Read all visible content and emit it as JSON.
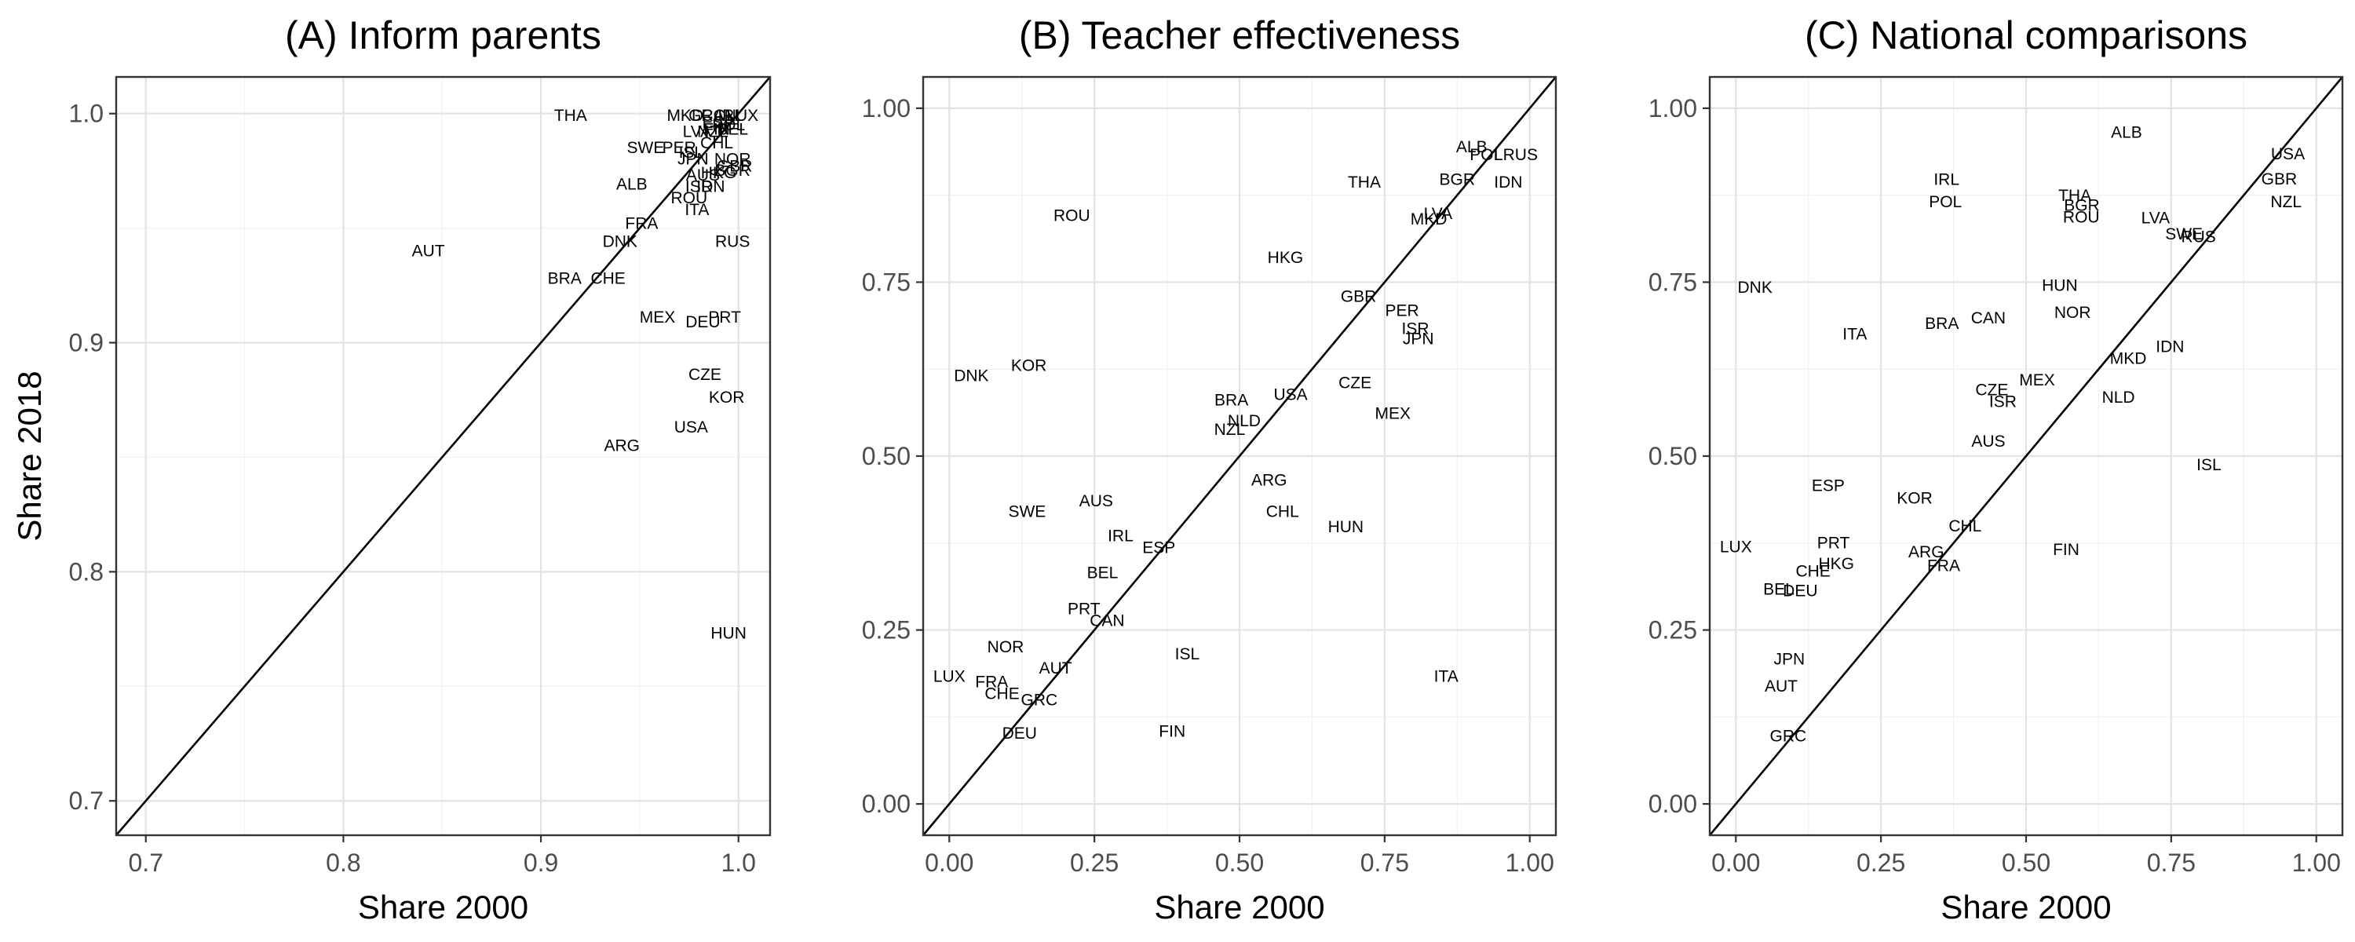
{
  "chart_data": [
    {
      "type": "scatter",
      "title": "(A) Inform parents",
      "xlabel": "Share 2000",
      "ylabel": "Share 2018",
      "xlim": [
        0.685,
        1.016
      ],
      "ylim": [
        0.685,
        1.016
      ],
      "xticks": [
        0.7,
        0.8,
        0.9,
        1.0
      ],
      "xtick_labels": [
        "0.7",
        "0.8",
        "0.9",
        "1.0"
      ],
      "yticks": [
        0.7,
        0.8,
        0.9,
        1.0
      ],
      "ytick_labels": [
        "0.7",
        "0.8",
        "0.9",
        "1.0"
      ],
      "reference_line": "y = x",
      "grid": true,
      "points": [
        {
          "label": "THA",
          "x": 0.915,
          "y": 0.999
        },
        {
          "label": "MKD",
          "x": 0.973,
          "y": 0.999
        },
        {
          "label": "GRC",
          "x": 0.984,
          "y": 0.999
        },
        {
          "label": "CAN",
          "x": 0.99,
          "y": 0.999
        },
        {
          "label": "IRL",
          "x": 0.996,
          "y": 0.999
        },
        {
          "label": "LUX",
          "x": 1.002,
          "y": 0.999
        },
        {
          "label": "ESP",
          "x": 0.99,
          "y": 0.996
        },
        {
          "label": "POL",
          "x": 0.995,
          "y": 0.995
        },
        {
          "label": "FIN",
          "x": 0.989,
          "y": 0.993
        },
        {
          "label": "BEL",
          "x": 0.997,
          "y": 0.993
        },
        {
          "label": "LVA",
          "x": 0.979,
          "y": 0.992
        },
        {
          "label": "NZL",
          "x": 0.987,
          "y": 0.992
        },
        {
          "label": "CHL",
          "x": 0.989,
          "y": 0.987
        },
        {
          "label": "SWE",
          "x": 0.953,
          "y": 0.985
        },
        {
          "label": "PER",
          "x": 0.97,
          "y": 0.985
        },
        {
          "label": "ISL",
          "x": 0.976,
          "y": 0.983
        },
        {
          "label": "JPN",
          "x": 0.977,
          "y": 0.98
        },
        {
          "label": "NOR",
          "x": 0.997,
          "y": 0.98
        },
        {
          "label": "GBR",
          "x": 0.998,
          "y": 0.977
        },
        {
          "label": "BGR",
          "x": 0.997,
          "y": 0.975
        },
        {
          "label": "AUS",
          "x": 0.982,
          "y": 0.973
        },
        {
          "label": "HKG",
          "x": 0.99,
          "y": 0.974
        },
        {
          "label": "ALB",
          "x": 0.946,
          "y": 0.969
        },
        {
          "label": "ISR",
          "x": 0.98,
          "y": 0.968
        },
        {
          "label": "IDN",
          "x": 0.986,
          "y": 0.968
        },
        {
          "label": "ROU",
          "x": 0.975,
          "y": 0.963
        },
        {
          "label": "ITA",
          "x": 0.979,
          "y": 0.958
        },
        {
          "label": "FRA",
          "x": 0.951,
          "y": 0.952
        },
        {
          "label": "DNK",
          "x": 0.94,
          "y": 0.944
        },
        {
          "label": "RUS",
          "x": 0.997,
          "y": 0.944
        },
        {
          "label": "AUT",
          "x": 0.843,
          "y": 0.94
        },
        {
          "label": "BRA",
          "x": 0.912,
          "y": 0.928
        },
        {
          "label": "CHE",
          "x": 0.934,
          "y": 0.928
        },
        {
          "label": "MEX",
          "x": 0.959,
          "y": 0.911
        },
        {
          "label": "DEU",
          "x": 0.982,
          "y": 0.909
        },
        {
          "label": "PRT",
          "x": 0.993,
          "y": 0.911
        },
        {
          "label": "CZE",
          "x": 0.983,
          "y": 0.886
        },
        {
          "label": "KOR",
          "x": 0.994,
          "y": 0.876
        },
        {
          "label": "USA",
          "x": 0.976,
          "y": 0.863
        },
        {
          "label": "ARG",
          "x": 0.941,
          "y": 0.855
        },
        {
          "label": "HUN",
          "x": 0.995,
          "y": 0.773
        }
      ]
    },
    {
      "type": "scatter",
      "title": "(B) Teacher effectiveness",
      "xlabel": "Share 2000",
      "ylabel": "",
      "xlim": [
        -0.045,
        1.045
      ],
      "ylim": [
        -0.045,
        1.045
      ],
      "xticks": [
        0,
        0.25,
        0.5,
        0.75,
        1.0
      ],
      "xtick_labels": [
        "0.00",
        "0.25",
        "0.50",
        "0.75",
        "1.00"
      ],
      "yticks": [
        0,
        0.25,
        0.5,
        0.75,
        1.0
      ],
      "ytick_labels": [
        "0.00",
        "0.25",
        "0.50",
        "0.75",
        "1.00"
      ],
      "reference_line": "y = x",
      "grid": true,
      "points": [
        {
          "label": "ALB",
          "x": 0.9,
          "y": 0.944
        },
        {
          "label": "POL",
          "x": 0.925,
          "y": 0.933
        },
        {
          "label": "LRUS",
          "x": 0.976,
          "y": 0.933
        },
        {
          "label": "THA",
          "x": 0.715,
          "y": 0.893
        },
        {
          "label": "BGR",
          "x": 0.875,
          "y": 0.897
        },
        {
          "label": "IDN",
          "x": 0.963,
          "y": 0.893
        },
        {
          "label": "ROU",
          "x": 0.211,
          "y": 0.845
        },
        {
          "label": "LVA",
          "x": 0.842,
          "y": 0.848
        },
        {
          "label": "MKD",
          "x": 0.826,
          "y": 0.84
        },
        {
          "label": "HKG",
          "x": 0.579,
          "y": 0.785
        },
        {
          "label": "GBR",
          "x": 0.705,
          "y": 0.729
        },
        {
          "label": "PER",
          "x": 0.78,
          "y": 0.709
        },
        {
          "label": "ISR",
          "x": 0.803,
          "y": 0.683
        },
        {
          "label": "JPN",
          "x": 0.808,
          "y": 0.668
        },
        {
          "label": "DNK",
          "x": 0.038,
          "y": 0.615
        },
        {
          "label": "KOR",
          "x": 0.137,
          "y": 0.63
        },
        {
          "label": "CZE",
          "x": 0.699,
          "y": 0.605
        },
        {
          "label": "USA",
          "x": 0.588,
          "y": 0.588
        },
        {
          "label": "BRA",
          "x": 0.486,
          "y": 0.58
        },
        {
          "label": "MEX",
          "x": 0.764,
          "y": 0.561
        },
        {
          "label": "NLD",
          "x": 0.508,
          "y": 0.55
        },
        {
          "label": "NZL",
          "x": 0.483,
          "y": 0.538
        },
        {
          "label": "ARG",
          "x": 0.551,
          "y": 0.465
        },
        {
          "label": "SWE",
          "x": 0.134,
          "y": 0.42
        },
        {
          "label": "AUS",
          "x": 0.253,
          "y": 0.435
        },
        {
          "label": "CHL",
          "x": 0.574,
          "y": 0.42
        },
        {
          "label": "HUN",
          "x": 0.683,
          "y": 0.398
        },
        {
          "label": "IRL",
          "x": 0.295,
          "y": 0.385
        },
        {
          "label": "ESP",
          "x": 0.361,
          "y": 0.368
        },
        {
          "label": "BEL",
          "x": 0.264,
          "y": 0.332
        },
        {
          "label": "PRT",
          "x": 0.232,
          "y": 0.28
        },
        {
          "label": "CAN",
          "x": 0.272,
          "y": 0.263
        },
        {
          "label": "NOR",
          "x": 0.097,
          "y": 0.225
        },
        {
          "label": "ISL",
          "x": 0.41,
          "y": 0.215
        },
        {
          "label": "AUT",
          "x": 0.183,
          "y": 0.195
        },
        {
          "label": "LUX",
          "x": 0.0,
          "y": 0.183
        },
        {
          "label": "FRA",
          "x": 0.073,
          "y": 0.175
        },
        {
          "label": "CHE",
          "x": 0.091,
          "y": 0.158
        },
        {
          "label": "GRC",
          "x": 0.155,
          "y": 0.149
        },
        {
          "label": "DEU",
          "x": 0.121,
          "y": 0.101
        },
        {
          "label": "FIN",
          "x": 0.384,
          "y": 0.104
        },
        {
          "label": "ITA",
          "x": 0.856,
          "y": 0.183
        }
      ]
    },
    {
      "type": "scatter",
      "title": "(C) National comparisons",
      "xlabel": "Share 2000",
      "ylabel": "",
      "xlim": [
        -0.045,
        1.045
      ],
      "ylim": [
        -0.045,
        1.045
      ],
      "xticks": [
        0,
        0.25,
        0.5,
        0.75,
        1.0
      ],
      "xtick_labels": [
        "0.00",
        "0.25",
        "0.50",
        "0.75",
        "1.00"
      ],
      "yticks": [
        0,
        0.25,
        0.5,
        0.75,
        1.0
      ],
      "yticks_labels_hidden": true,
      "ytick_labels": [
        "0.00",
        "0.25",
        "0.50",
        "0.75",
        "1.00"
      ],
      "reference_line": "y = x",
      "grid": true,
      "points": [
        {
          "label": "ALB",
          "x": 0.673,
          "y": 0.965
        },
        {
          "label": "USA",
          "x": 0.951,
          "y": 0.934
        },
        {
          "label": "GBR",
          "x": 0.936,
          "y": 0.898
        },
        {
          "label": "NZL",
          "x": 0.948,
          "y": 0.865
        },
        {
          "label": "IRL",
          "x": 0.363,
          "y": 0.897
        },
        {
          "label": "POL",
          "x": 0.361,
          "y": 0.865
        },
        {
          "label": "THA",
          "x": 0.584,
          "y": 0.874
        },
        {
          "label": "BGR",
          "x": 0.596,
          "y": 0.86
        },
        {
          "label": "ROU",
          "x": 0.595,
          "y": 0.843
        },
        {
          "label": "LVA",
          "x": 0.723,
          "y": 0.842
        },
        {
          "label": "SWE",
          "x": 0.772,
          "y": 0.819
        },
        {
          "label": "RUS",
          "x": 0.797,
          "y": 0.815
        },
        {
          "label": "DNK",
          "x": 0.033,
          "y": 0.742
        },
        {
          "label": "HUN",
          "x": 0.558,
          "y": 0.745
        },
        {
          "label": "NOR",
          "x": 0.58,
          "y": 0.706
        },
        {
          "label": "BRA",
          "x": 0.355,
          "y": 0.69
        },
        {
          "label": "CAN",
          "x": 0.435,
          "y": 0.698
        },
        {
          "label": "ITA",
          "x": 0.205,
          "y": 0.675
        },
        {
          "label": "IDN",
          "x": 0.748,
          "y": 0.657
        },
        {
          "label": "MKD",
          "x": 0.676,
          "y": 0.64
        },
        {
          "label": "MEX",
          "x": 0.519,
          "y": 0.609
        },
        {
          "label": "CZE",
          "x": 0.441,
          "y": 0.595
        },
        {
          "label": "ISR",
          "x": 0.46,
          "y": 0.578
        },
        {
          "label": "NLD",
          "x": 0.659,
          "y": 0.584
        },
        {
          "label": "AUS",
          "x": 0.435,
          "y": 0.521
        },
        {
          "label": "ISL",
          "x": 0.815,
          "y": 0.487
        },
        {
          "label": "ESP",
          "x": 0.159,
          "y": 0.457
        },
        {
          "label": "KOR",
          "x": 0.308,
          "y": 0.439
        },
        {
          "label": "CHL",
          "x": 0.395,
          "y": 0.399
        },
        {
          "label": "LUX",
          "x": 0.0,
          "y": 0.369
        },
        {
          "label": "PRT",
          "x": 0.168,
          "y": 0.375
        },
        {
          "label": "FIN",
          "x": 0.569,
          "y": 0.365
        },
        {
          "label": "ARG",
          "x": 0.328,
          "y": 0.362
        },
        {
          "label": "HKG",
          "x": 0.173,
          "y": 0.345
        },
        {
          "label": "FRA",
          "x": 0.358,
          "y": 0.342
        },
        {
          "label": "CHE",
          "x": 0.133,
          "y": 0.334
        },
        {
          "label": "BEL",
          "x": 0.074,
          "y": 0.308
        },
        {
          "label": "DEU",
          "x": 0.111,
          "y": 0.306
        },
        {
          "label": "JPN",
          "x": 0.092,
          "y": 0.208
        },
        {
          "label": "AUT",
          "x": 0.078,
          "y": 0.169
        },
        {
          "label": "GRC",
          "x": 0.09,
          "y": 0.097
        }
      ]
    }
  ]
}
